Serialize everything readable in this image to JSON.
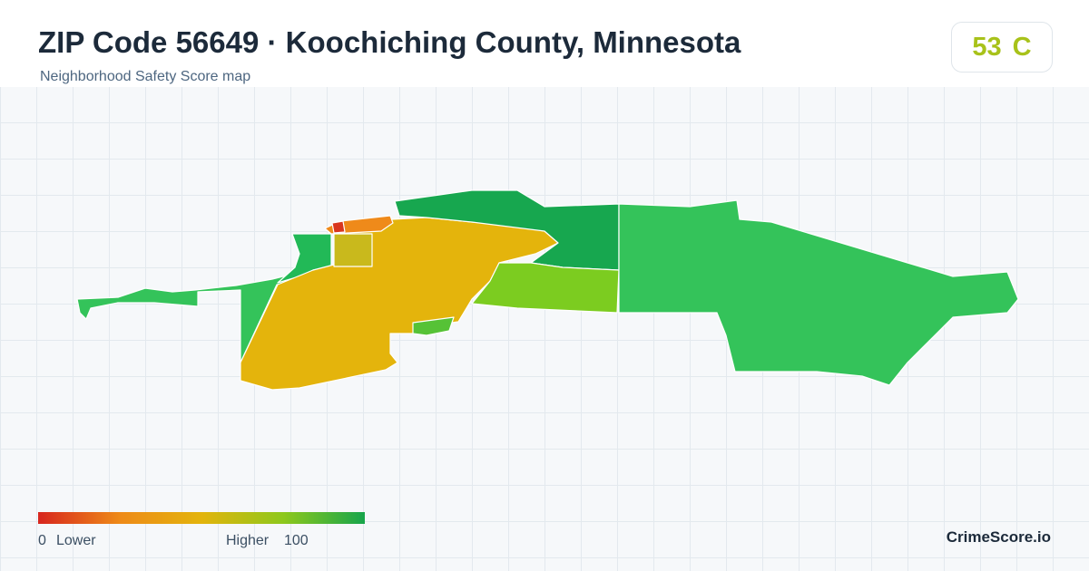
{
  "header": {
    "title": "ZIP Code 56649 · Koochiching County, Minnesota",
    "subtitle": "Neighborhood Safety Score map",
    "score": "53",
    "grade": "C"
  },
  "legend": {
    "min": "0",
    "min_label": "Lower",
    "max_label": "Higher",
    "max": "100"
  },
  "footer": {
    "brand": "CrimeScore.io"
  }
}
